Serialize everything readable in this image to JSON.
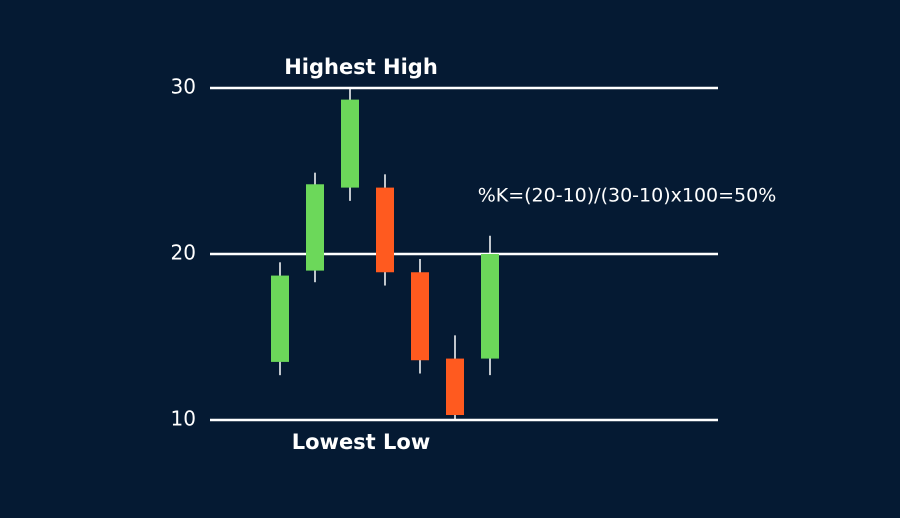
{
  "chart_data": {
    "type": "candlestick",
    "candles": [
      {
        "open": 13.5,
        "high": 19.5,
        "low": 12.7,
        "close": 18.7
      },
      {
        "open": 19.0,
        "high": 24.9,
        "low": 18.3,
        "close": 24.2
      },
      {
        "open": 24.0,
        "high": 30.0,
        "low": 23.2,
        "close": 29.3
      },
      {
        "open": 24.0,
        "high": 24.8,
        "low": 18.1,
        "close": 18.9
      },
      {
        "open": 18.9,
        "high": 19.7,
        "low": 12.8,
        "close": 13.6
      },
      {
        "open": 13.7,
        "high": 15.1,
        "low": 10.0,
        "close": 10.3
      },
      {
        "open": 13.7,
        "high": 21.1,
        "low": 12.7,
        "close": 20.0
      }
    ],
    "up_color": "#6cd85a",
    "down_color": "#ff5a1f",
    "ylim": [
      10,
      30
    ],
    "yticks": [
      10,
      20,
      30
    ],
    "grid": true,
    "annotations": [
      "Highest High",
      "Lowest Low",
      "%K=(20-10)/(30-10)x100=50%"
    ]
  }
}
